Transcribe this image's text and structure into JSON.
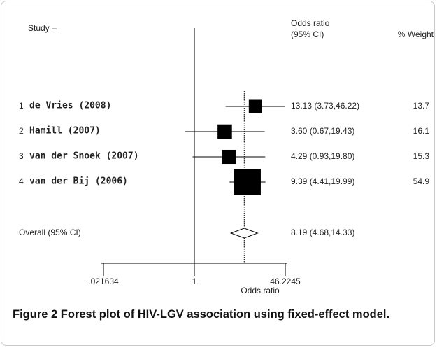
{
  "chart_data": {
    "type": "forest",
    "study_header": "Study –",
    "estimate_header": "Odds ratio",
    "estimate_subheader": "(95% CI)",
    "weight_header": "% Weight",
    "color": "#000000",
    "log_x": true,
    "reference_line": 1,
    "xlim": [
      0.021634,
      46.2245
    ],
    "xticks": [
      {
        "value": 0.021634,
        "label": ".021634"
      },
      1,
      46.2245
    ],
    "x_label": "Odds ratio",
    "studies": [
      {
        "number": "1",
        "name": "de Vries (2008)",
        "or": 13.13,
        "lower": 3.73,
        "upper": 46.22,
        "ci_label": "13.13 (3.73,46.22)",
        "weight": 13.7
      },
      {
        "number": "2",
        "name": "Hamill (2007)",
        "or": 3.6,
        "lower": 0.67,
        "upper": 19.43,
        "ci_label": "3.60 (0.67,19.43)",
        "weight": 16.1
      },
      {
        "number": "3",
        "name": "van der Snoek (2007)",
        "or": 4.29,
        "lower": 0.93,
        "upper": 19.8,
        "ci_label": "4.29 (0.93,19.80)",
        "weight": 15.3
      },
      {
        "number": "4",
        "name": "van der Bij (2006)",
        "or": 9.39,
        "lower": 4.41,
        "upper": 19.99,
        "ci_label": "9.39 (4.41,19.99)",
        "weight": 54.9
      }
    ],
    "overall": {
      "label": "Overall (95% CI)",
      "or": 8.19,
      "lower": 4.68,
      "upper": 14.33,
      "ci_label": "8.19 (4.68,14.33)"
    },
    "caption_label": "Figure 2",
    "caption": "Forest plot of HIV-LGV association using fixed-effect model."
  }
}
